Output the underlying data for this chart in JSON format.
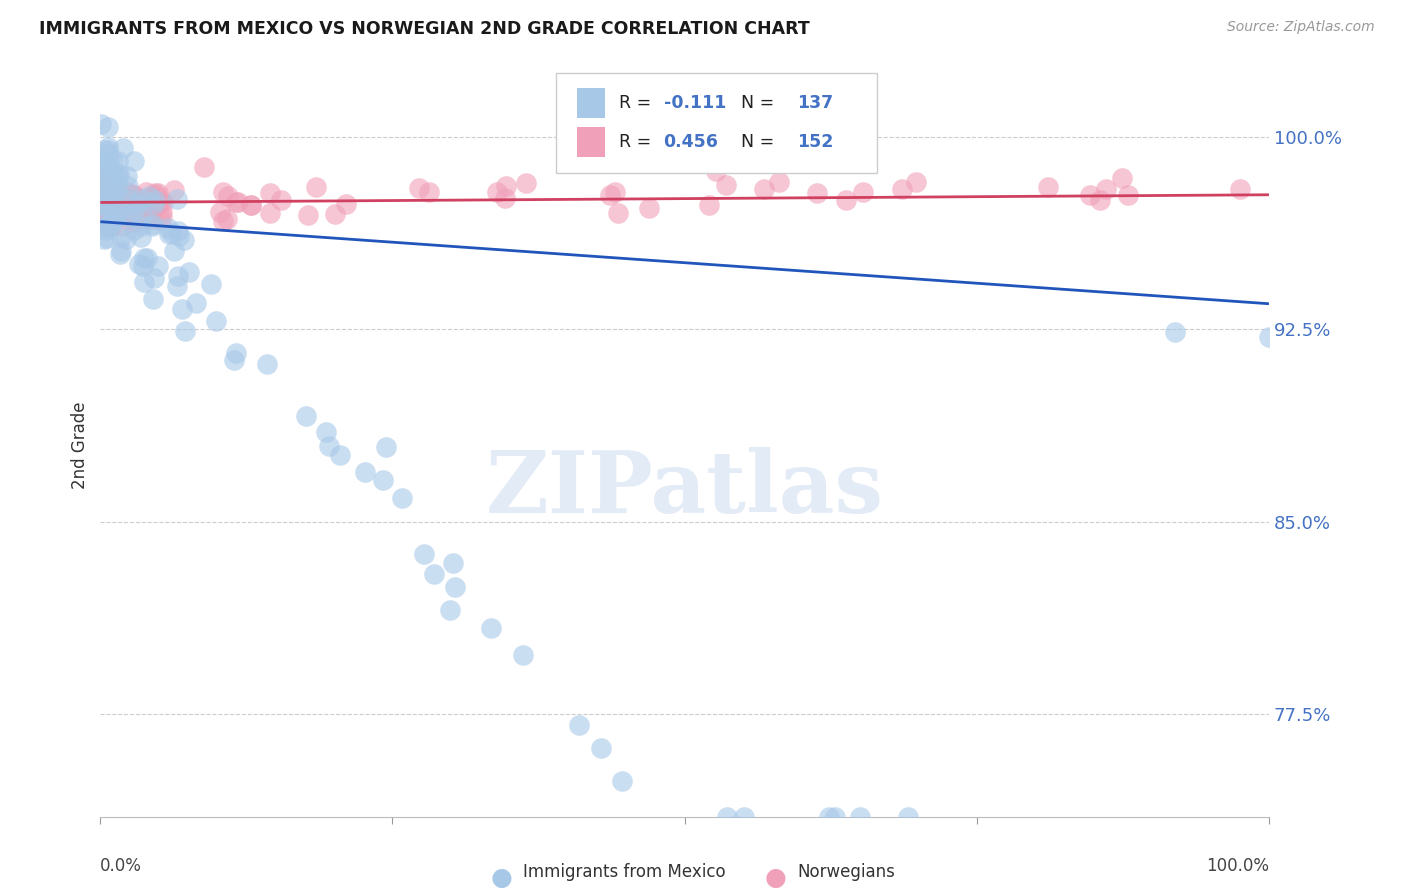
{
  "title": "IMMIGRANTS FROM MEXICO VS NORWEGIAN 2ND GRADE CORRELATION CHART",
  "source": "Source: ZipAtlas.com",
  "ylabel": "2nd Grade",
  "legend_blue_R": "-0.111",
  "legend_blue_N": "137",
  "legend_pink_R": "0.456",
  "legend_pink_N": "152",
  "legend_label_blue": "Immigrants from Mexico",
  "legend_label_pink": "Norwegians",
  "ytick_labels": [
    "77.5%",
    "85.0%",
    "92.5%",
    "100.0%"
  ],
  "ytick_values": [
    0.775,
    0.85,
    0.925,
    1.0
  ],
  "xlim": [
    0.0,
    1.0
  ],
  "ylim": [
    0.735,
    1.025
  ],
  "blue_color": "#A8C8E8",
  "pink_color": "#F0A0B8",
  "blue_line_color": "#2255BB",
  "pink_line_color": "#D04060",
  "background_color": "#ffffff",
  "blue_line_y0": 0.967,
  "blue_line_y1": 0.935,
  "pink_line_y0": 0.9745,
  "pink_line_y1": 0.9775
}
